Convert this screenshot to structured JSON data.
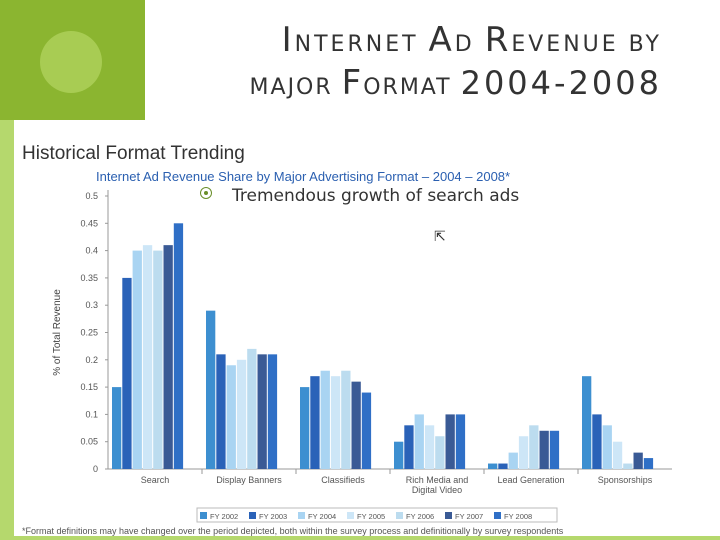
{
  "slide": {
    "title_line1_parts": [
      "I",
      "NTERNET ",
      "A",
      "D ",
      "R",
      "EVENUE",
      " BY"
    ],
    "title_line2_parts": [
      "MAJOR ",
      "F",
      "ORMAT ",
      "2004-2008"
    ],
    "bullet_text": "Tremendous growth of search ads",
    "colors": {
      "accent_green": "#8bb530",
      "light_green": "#b5d86d"
    }
  },
  "chart_data": {
    "type": "bar",
    "heading": "Historical Format Trending",
    "title": "Internet Ad Revenue Share by Major Advertising Format – 2004 – 2008*",
    "ylabel": "% of Total Revenue",
    "ylim": [
      0,
      0.5
    ],
    "yticks": [
      "0",
      "0.05",
      "0.1",
      "0.15",
      "0.2",
      "0.25",
      "0.3",
      "0.35",
      "0.4",
      "0.45",
      "0.5"
    ],
    "categories": [
      [
        "Search"
      ],
      [
        "Display Banners"
      ],
      [
        "Classifieds"
      ],
      [
        "Rich Media and",
        "Digital Video"
      ],
      [
        "Lead Generation"
      ],
      [
        "Sponsorships"
      ]
    ],
    "series": [
      {
        "name": "FY 2002",
        "color": "#3d8fd0",
        "values": [
          0.15,
          0.29,
          0.15,
          0.05,
          0.01,
          0.17
        ]
      },
      {
        "name": "FY 2003",
        "color": "#2a62b8",
        "values": [
          0.35,
          0.21,
          0.17,
          0.08,
          0.01,
          0.1
        ]
      },
      {
        "name": "FY 2004",
        "color": "#a9d4f2",
        "values": [
          0.4,
          0.19,
          0.18,
          0.1,
          0.03,
          0.08
        ]
      },
      {
        "name": "FY 2005",
        "color": "#cde6f7",
        "values": [
          0.41,
          0.2,
          0.17,
          0.08,
          0.06,
          0.05
        ]
      },
      {
        "name": "FY 2006",
        "color": "#bcdcef",
        "values": [
          0.4,
          0.22,
          0.18,
          0.06,
          0.08,
          0.01
        ]
      },
      {
        "name": "FY 2007",
        "color": "#3a5a95",
        "values": [
          0.41,
          0.21,
          0.16,
          0.1,
          0.07,
          0.03
        ]
      },
      {
        "name": "FY 2008",
        "color": "#2f6fc6",
        "values": [
          0.45,
          0.21,
          0.14,
          0.1,
          0.07,
          0.02
        ]
      }
    ],
    "footnote": "*Format definitions may have changed over the period depicted, both within the survey process and definitionally by survey respondents"
  }
}
